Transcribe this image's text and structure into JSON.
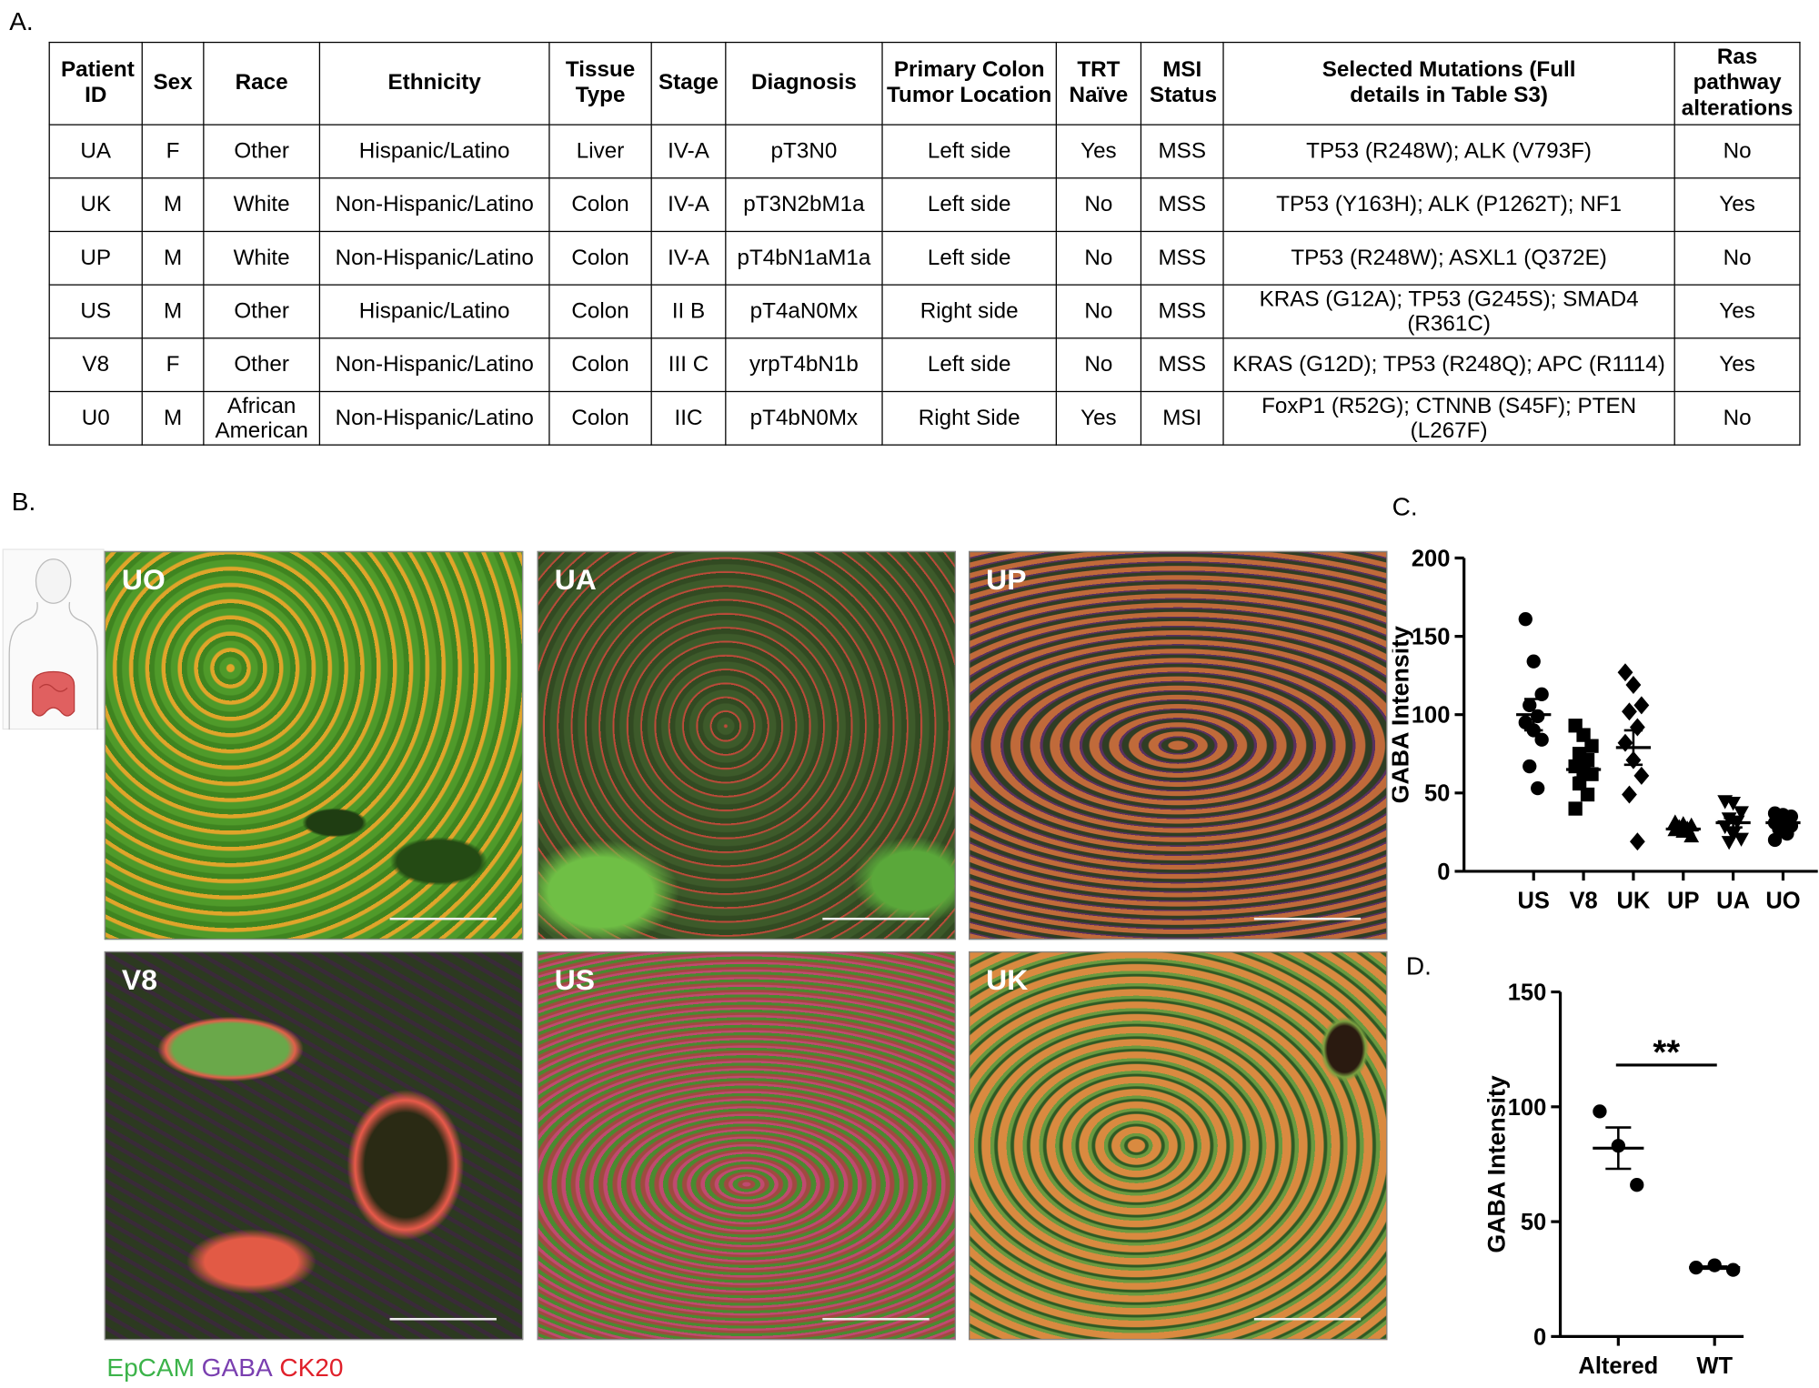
{
  "panel_labels": [
    "A.",
    "B.",
    "C.",
    "D."
  ],
  "table": {
    "header": [
      "Patient ID",
      "Sex",
      "Race",
      "Ethnicity",
      "Tissue Type",
      "Stage",
      "Diagnosis",
      "Primary Colon Tumor Location",
      "TRT Naïve",
      "MSI Status",
      "Selected Mutations (Full details in Table S3)",
      "Ras pathway alterations"
    ],
    "rows": [
      [
        "UA",
        "F",
        "Other",
        "Hispanic/Latino",
        "Liver",
        "IV-A",
        "pT3N0",
        "Left side",
        "Yes",
        "MSS",
        "TP53 (R248W); ALK (V793F)",
        "No"
      ],
      [
        "UK",
        "M",
        "White",
        "Non-Hispanic/Latino",
        "Colon",
        "IV-A",
        "pT3N2bM1a",
        "Left side",
        "No",
        "MSS",
        "TP53 (Y163H); ALK (P1262T); NF1",
        "Yes"
      ],
      [
        "UP",
        "M",
        "White",
        "Non-Hispanic/Latino",
        "Colon",
        "IV-A",
        "pT4bN1aM1a",
        "Left side",
        "No",
        "MSS",
        "TP53 (R248W); ASXL1 (Q372E)",
        "No"
      ],
      [
        "US",
        "M",
        "Other",
        "Hispanic/Latino",
        "Colon",
        "II B",
        "pT4aN0Mx",
        "Right side",
        "No",
        "MSS",
        "KRAS (G12A); TP53 (G245S); SMAD4 (R361C)",
        "Yes"
      ],
      [
        "V8",
        "F",
        "Other",
        "Non-Hispanic/Latino",
        "Colon",
        "III C",
        "yrpT4bN1b",
        "Left side",
        "No",
        "MSS",
        "KRAS (G12D); TP53 (R248Q); APC (R1114)",
        "Yes"
      ],
      [
        "U0",
        "M",
        "African American",
        "Non-Hispanic/Latino",
        "Colon",
        "IIC",
        "pT4bN0Mx",
        "Right Side",
        "Yes",
        "MSI",
        "FoxP1 (R52G); CTNNB (S45F); PTEN (L267F)",
        "No"
      ]
    ]
  },
  "micrographs": {
    "labels": [
      "UO",
      "UA",
      "UP",
      "V8",
      "US",
      "UK"
    ],
    "stain_legend": [
      {
        "text": "EpCAM",
        "color": "#3cb34a"
      },
      {
        "text": "GABA",
        "color": "#7a3fb0"
      },
      {
        "text": "CK20",
        "color": "#e0202a"
      }
    ]
  },
  "chart_data": [
    {
      "type": "dot",
      "ylabel": "GABA Intensity",
      "color": "#000000",
      "categories": [
        "US",
        "V8",
        "UK",
        "UP",
        "UA",
        "UO"
      ],
      "markers": [
        "circle",
        "square",
        "diamond",
        "triangle",
        "triangle-down",
        "circle"
      ],
      "values": [
        [
          161,
          134,
          113,
          106,
          99,
          95,
          90,
          84,
          67,
          53
        ],
        [
          93,
          87,
          80,
          75,
          71,
          67,
          65,
          62,
          56,
          49,
          40
        ],
        [
          127,
          119,
          106,
          102,
          92,
          82,
          71,
          61,
          49,
          19
        ],
        [
          31,
          30,
          29,
          28,
          27,
          26,
          25,
          22
        ],
        [
          45,
          44,
          38,
          34,
          32,
          29,
          24,
          21,
          19
        ],
        [
          37,
          36,
          35,
          34,
          32,
          31,
          30,
          29,
          27,
          24,
          20
        ]
      ],
      "means": [
        100,
        65,
        79,
        27,
        31,
        31
      ],
      "sems": [
        10,
        5,
        11,
        1,
        3,
        2
      ],
      "ylim": [
        0,
        200
      ],
      "yticks": [
        0,
        50,
        100,
        150,
        200
      ]
    },
    {
      "type": "dot",
      "ylabel": "GABA Intensity",
      "color": "#000000",
      "categories": [
        "Altered",
        "WT"
      ],
      "markers": [
        "circle",
        "circle"
      ],
      "values": [
        [
          98,
          83,
          66
        ],
        [
          30,
          31,
          29
        ]
      ],
      "means": [
        82,
        30
      ],
      "sems": [
        9,
        0.5
      ],
      "annotation": "**",
      "ylim": [
        0,
        150
      ],
      "yticks": [
        0,
        50,
        100,
        150
      ]
    }
  ]
}
